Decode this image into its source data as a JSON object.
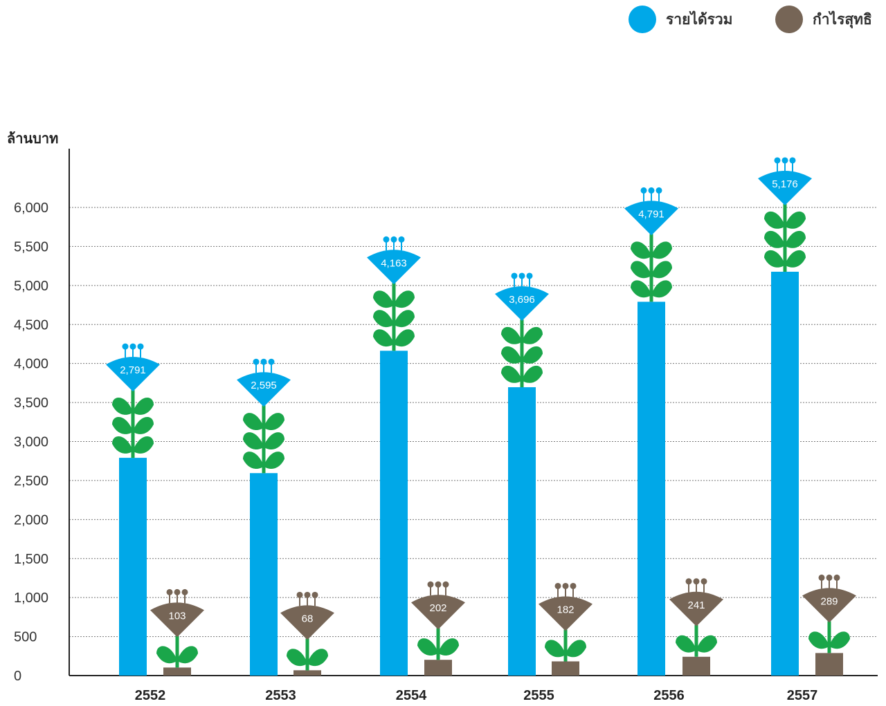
{
  "legend": {
    "revenue_label": "รายได้รวม",
    "profit_label": "กำไรสุทธิ"
  },
  "chart_data": {
    "type": "bar",
    "title": "",
    "xlabel": "",
    "ylabel": "ล้านบาท",
    "ylim": [
      0,
      6000
    ],
    "yticks": [
      0,
      500,
      1000,
      1500,
      2000,
      2500,
      3000,
      3500,
      4000,
      4500,
      5000,
      5500,
      6000
    ],
    "ytick_labels": [
      "0",
      "500",
      "1,000",
      "1,500",
      "2,000",
      "2,500",
      "3,000",
      "3,500",
      "4,000",
      "4,500",
      "5,000",
      "5,500",
      "6,000"
    ],
    "categories": [
      "2552",
      "2553",
      "2554",
      "2555",
      "2556",
      "2557"
    ],
    "grid": "horizontal dotted",
    "legend_position": "top-right",
    "series": [
      {
        "name": "รายได้รวม",
        "color": "#00a8e8",
        "values": [
          2791,
          2595,
          4163,
          3696,
          4791,
          5176
        ],
        "labels": [
          "2,791",
          "2,595",
          "4,163",
          "3,696",
          "4,791",
          "5,176"
        ]
      },
      {
        "name": "กำไรสุทธิ",
        "color": "#766556",
        "values": [
          103,
          68,
          202,
          182,
          241,
          289
        ],
        "labels": [
          "103",
          "68",
          "202",
          "182",
          "241",
          "289"
        ]
      }
    ],
    "leaf_color": "#1aa64a"
  }
}
